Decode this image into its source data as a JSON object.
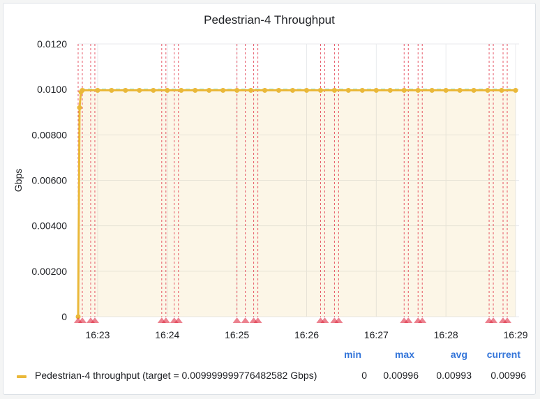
{
  "panel": {
    "title": "Pedestrian-4 Throughput"
  },
  "chart_data": {
    "type": "line",
    "title": "Pedestrian-4 Throughput",
    "ylabel": "Gbps",
    "xlabel": "",
    "ylim": [
      0,
      0.012
    ],
    "yticks": [
      0,
      0.002,
      0.004,
      0.006,
      0.008,
      0.01,
      0.012
    ],
    "ytick_labels": [
      "0",
      "0.00200",
      "0.00400",
      "0.00600",
      "0.00800",
      "0.0100",
      "0.0120"
    ],
    "xlim": [
      22.72,
      29.05
    ],
    "xticks": [
      23,
      24,
      25,
      26,
      27,
      28,
      29
    ],
    "xtick_labels": [
      "16:23",
      "16:24",
      "16:25",
      "16:26",
      "16:27",
      "16:28",
      "16:29"
    ],
    "series": [
      {
        "name": "Pedestrian-4 throughput (target = 0.009999999776482582 Gbps)",
        "color": "#eab839",
        "x": [
          22.72,
          22.74,
          22.76,
          22.78,
          23.0,
          23.2,
          23.4,
          23.6,
          23.8,
          24.0,
          24.2,
          24.4,
          24.6,
          24.8,
          25.0,
          25.2,
          25.4,
          25.6,
          25.8,
          26.0,
          26.2,
          26.4,
          26.6,
          26.8,
          27.0,
          27.2,
          27.4,
          27.6,
          27.8,
          28.0,
          28.2,
          28.4,
          28.6,
          28.8,
          29.0
        ],
        "values": [
          0,
          0.0092,
          0.00988,
          0.00996,
          0.00996,
          0.00996,
          0.00996,
          0.00996,
          0.00996,
          0.00996,
          0.00996,
          0.00996,
          0.00996,
          0.00996,
          0.00996,
          0.00996,
          0.00996,
          0.00996,
          0.00996,
          0.00996,
          0.00996,
          0.00996,
          0.00996,
          0.00996,
          0.00996,
          0.00996,
          0.00996,
          0.00996,
          0.00996,
          0.00996,
          0.00996,
          0.00996,
          0.00996,
          0.00996,
          0.00996
        ]
      }
    ],
    "target_line": {
      "value": 0.01,
      "color": "#6ccf8e"
    },
    "annotations": {
      "color": "#e02f44",
      "x": [
        22.72,
        22.78,
        22.9,
        22.96,
        23.92,
        23.98,
        24.1,
        24.16,
        25.0,
        25.12,
        25.24,
        25.3,
        26.2,
        26.26,
        26.4,
        26.46,
        27.4,
        27.46,
        27.6,
        27.66,
        28.62,
        28.68,
        28.82,
        28.88
      ]
    },
    "legend": {
      "headers": [
        "min",
        "max",
        "avg",
        "current"
      ],
      "rows": [
        {
          "label": "Pedestrian-4 throughput (target = 0.009999999776482582 Gbps)",
          "min": "0",
          "max": "0.00996",
          "avg": "0.00993",
          "current": "0.00996"
        }
      ]
    }
  }
}
